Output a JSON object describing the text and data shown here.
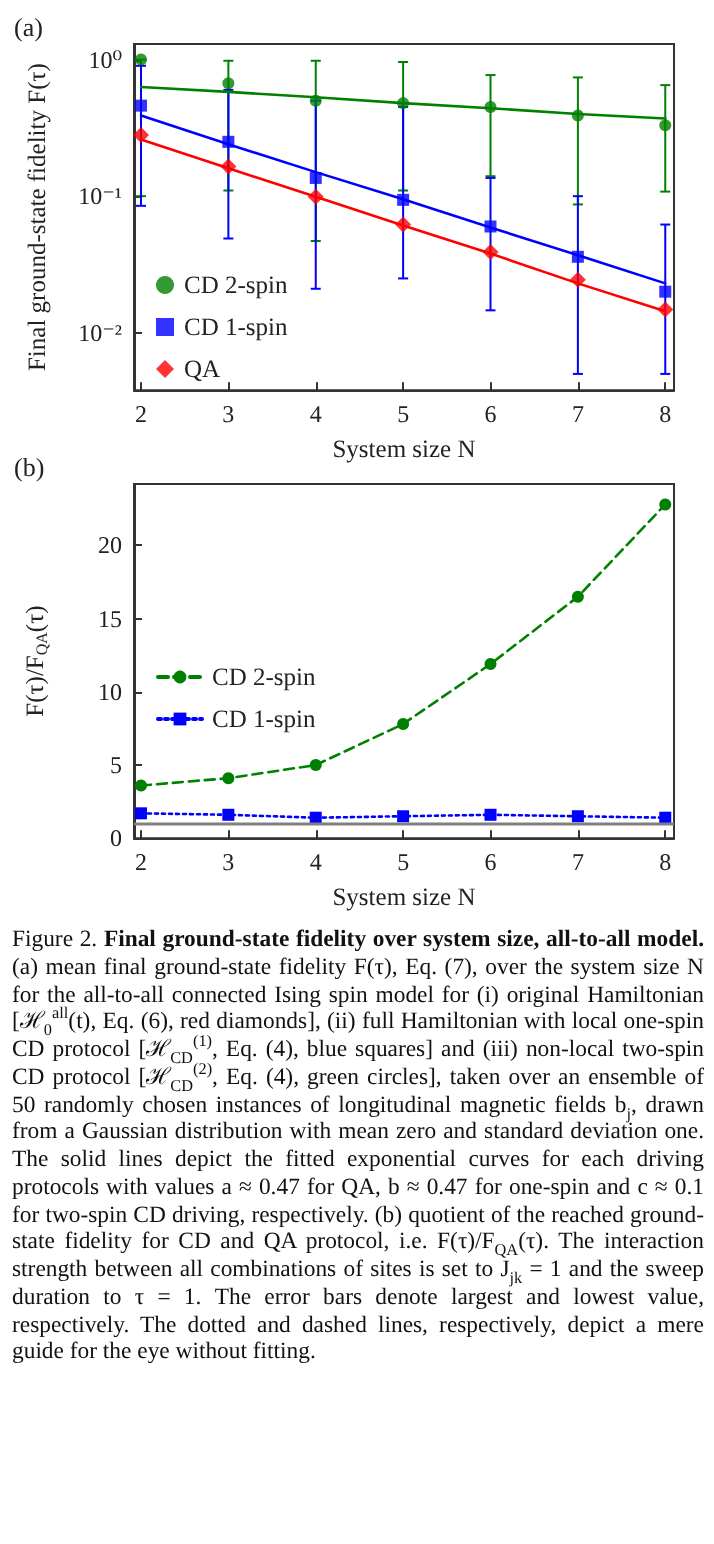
{
  "chart_data": [
    {
      "type": "scatter",
      "title": "(a)",
      "xlabel": "System size N",
      "ylabel": "Final ground-state fidelity F(τ)",
      "x": [
        2,
        3,
        4,
        5,
        6,
        7,
        8
      ],
      "log": "y",
      "xlim": [
        1.92,
        8.1
      ],
      "xticks": [
        2,
        3,
        4,
        5,
        6,
        7,
        8
      ],
      "ylim": [
        0.0038,
        1.3
      ],
      "yticks": [
        {
          "value": 0.01,
          "label": "10⁻²"
        },
        {
          "value": 0.1,
          "label": "10⁻¹"
        },
        {
          "value": 1,
          "label": "10⁰"
        }
      ],
      "grid": false,
      "legend": "bottom left",
      "series": [
        {
          "name": "CD 2-spin",
          "color": "#008000",
          "marker": "circle",
          "values": [
            1.0,
            0.67,
            0.5,
            0.48,
            0.45,
            0.39,
            0.33
          ],
          "errors": [
            [
              0.1,
              1.0
            ],
            [
              0.11,
              0.98
            ],
            [
              0.047,
              0.98
            ],
            [
              0.11,
              0.96
            ],
            [
              0.14,
              0.77
            ],
            [
              0.087,
              0.74
            ],
            [
              0.108,
              0.65
            ]
          ]
        },
        {
          "name": "CD 1-spin",
          "color": "#0000ff",
          "marker": "square",
          "values": [
            0.46,
            0.25,
            0.136,
            0.094,
            0.06,
            0.036,
            0.02
          ],
          "errors": [
            [
              0.085,
              0.9
            ],
            [
              0.049,
              0.6
            ],
            [
              0.021,
              0.5
            ],
            [
              0.025,
              0.45
            ],
            [
              0.0146,
              0.136
            ],
            [
              0.005,
              0.1
            ],
            [
              0.005,
              0.062
            ]
          ]
        },
        {
          "name": "QA",
          "color": "#ff0000",
          "marker": "diamond",
          "values": [
            0.28,
            0.165,
            0.099,
            0.062,
            0.039,
            0.0245,
            0.0148
          ]
        },
        {
          "type": "line",
          "color": "#008000",
          "marker": "none",
          "line_style": "solid",
          "values": [
            0.63,
            0.58,
            0.53,
            0.48,
            0.44,
            0.4,
            0.37
          ]
        },
        {
          "type": "line",
          "color": "#0000ff",
          "marker": "none",
          "line_style": "solid",
          "values": [
            0.39,
            0.24,
            0.15,
            0.095,
            0.059,
            0.037,
            0.023
          ]
        },
        {
          "type": "line",
          "color": "#ff0000",
          "marker": "none",
          "line_style": "solid",
          "values": [
            0.26,
            0.16,
            0.099,
            0.061,
            0.038,
            0.023,
            0.0144
          ]
        }
      ]
    },
    {
      "type": "line",
      "title": "(b)",
      "xlabel": "System size N",
      "ylabel": "F(τ)/F$_{QA}$(τ)",
      "x": [
        2,
        3,
        4,
        5,
        6,
        7,
        8
      ],
      "xlim": [
        1.92,
        8.1
      ],
      "xticks": [
        2,
        3,
        4,
        5,
        6,
        7,
        8
      ],
      "ylim": [
        0,
        24.2
      ],
      "yticks": [
        0,
        5,
        10,
        15,
        20
      ],
      "grid": false,
      "legend": "left",
      "series": [
        {
          "name": "CD 2-spin",
          "color": "#008000",
          "marker": "circle",
          "line_style": "dashed",
          "values": [
            3.6,
            4.1,
            5.0,
            7.8,
            11.9,
            16.5,
            22.8
          ]
        },
        {
          "name": "CD 1-spin",
          "color": "#0000ff",
          "marker": "square",
          "line_style": "dotted",
          "values": [
            1.7,
            1.6,
            1.4,
            1.5,
            1.6,
            1.5,
            1.4
          ]
        }
      ],
      "ref_lines": [
        {
          "axis": "y",
          "value": 1,
          "label": null,
          "color": "#808080",
          "line_style": "solid"
        }
      ]
    },
    {
      "type": "other",
      "title": "Final ground-state fidelity over system size, all-to-all model.",
      "annotations": [
        "Figure 2.",
        "(a) mean final ground-state fidelity F(τ), Eq. (7), over the system size N for the all-to-all connected Ising spin model for (i) original Hamiltonian [ℋ$_{0}$$^{all}$(t), Eq. (6), red diamonds], (ii) full Hamiltonian with local one-spin CD protocol [ℋ$_{CD}$$^{(1)}$, Eq. (4), blue squares] and (iii) non-local two-spin CD protocol [ℋ$_{CD}$$^{(2)}$, Eq. (4), green circles], taken over an ensemble of 50 randomly chosen instances of longitudinal magnetic fields b$_{j}$, drawn from a Gaussian distribution with mean zero and standard deviation one. The solid lines depict the fitted exponential curves for each driving protocols with values a ≈ 0.47 for QA, b ≈ 0.47 for one-spin and c ≈ 0.1 for two-spin CD driving, respectively. (b) quotient of the reached ground-state fidelity for CD and QA protocol, i.e. F(τ)/F$_{QA}$(τ). The interaction strength between all combinations of sites is set to J$_{jk}$ = 1 and the sweep duration to τ = 1. The error bars denote largest and lowest value, respectively. The dotted and dashed lines, respectively, depict a mere guide for the eye without fitting."
      ]
    }
  ]
}
